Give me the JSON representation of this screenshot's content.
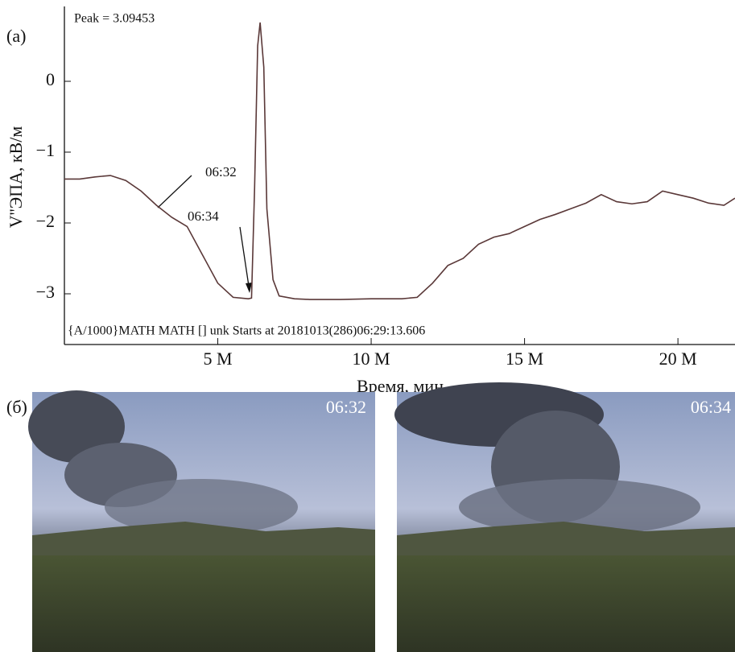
{
  "chart_data": {
    "type": "line",
    "panel_label": "(a)",
    "ylabel": "V''ЭПА, кВ/м",
    "xlabel": "Время, мин",
    "annotations": [
      "Peak = 3.09453",
      "06:32",
      "06:34",
      "{A/1000}MATH MATH [] unk Starts at 20181013(286)06:29:13.606"
    ],
    "xlim": [
      0,
      21.86
    ],
    "ylim": [
      -3.716,
      1.034
    ],
    "xticks": [
      {
        "value": 5,
        "label": "5 M"
      },
      {
        "value": 10,
        "label": "10 M"
      },
      {
        "value": 15,
        "label": "15 M"
      },
      {
        "value": 20,
        "label": "20 M"
      }
    ],
    "yticks": [
      {
        "value": -3,
        "label": "−3"
      },
      {
        "value": -2,
        "label": "−2"
      },
      {
        "value": -1,
        "label": "−1"
      },
      0
    ],
    "grid": false,
    "series": [
      {
        "color": "#5a3838",
        "x": [
          0,
          0.5,
          1,
          1.5,
          2,
          2.5,
          3,
          3.5,
          4,
          4.5,
          5,
          5.5,
          6,
          6.1,
          6.2,
          6.3,
          6.38,
          6.5,
          6.6,
          6.8,
          7,
          7.5,
          8,
          9,
          10,
          11,
          11.5,
          12,
          12.5,
          13,
          13.5,
          14,
          14.5,
          15,
          15.5,
          16,
          16.5,
          17,
          17.5,
          18,
          18.5,
          19,
          19.5,
          20,
          20.5,
          21,
          21.5,
          21.86
        ],
        "values": [
          -1.38,
          -1.38,
          -1.35,
          -1.33,
          -1.4,
          -1.55,
          -1.75,
          -1.92,
          -2.05,
          -2.45,
          -2.85,
          -3.05,
          -3.07,
          -3.06,
          -1.5,
          0.5,
          0.83,
          0.2,
          -1.8,
          -2.8,
          -3.03,
          -3.07,
          -3.08,
          -3.08,
          -3.07,
          -3.07,
          -3.05,
          -2.85,
          -2.6,
          -2.5,
          -2.3,
          -2.2,
          -2.15,
          -2.05,
          -1.95,
          -1.88,
          -1.8,
          -1.72,
          -1.6,
          -1.7,
          -1.73,
          -1.7,
          -1.55,
          -1.6,
          -1.65,
          -1.72,
          -1.75,
          -1.65
        ]
      }
    ]
  },
  "photos": {
    "panel_label": "(б)",
    "timestamps": [
      "06:32",
      "06:34"
    ]
  }
}
